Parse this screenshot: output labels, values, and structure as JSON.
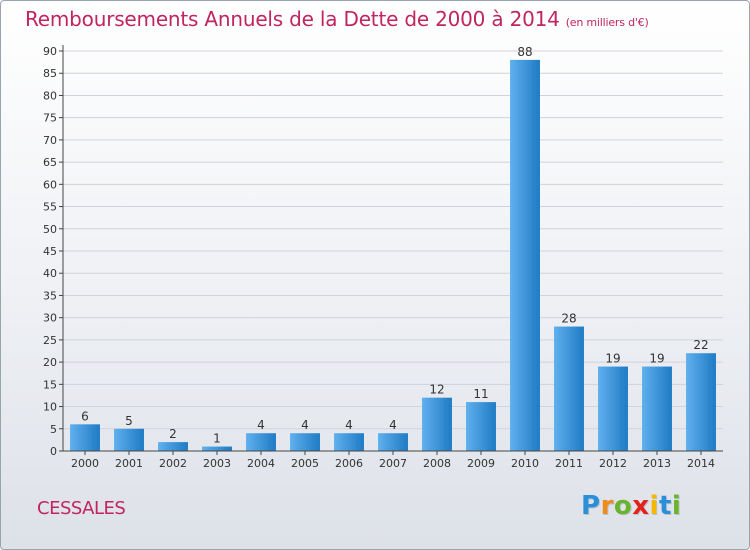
{
  "header": {
    "title": "Remboursements Annuels de la Dette de 2000 à 2014",
    "unit": "(en milliers d'€)"
  },
  "footer": {
    "commune": "CESSALES",
    "brand_letters": [
      "P",
      "r",
      "o",
      "x",
      "i",
      "t",
      "i"
    ],
    "brand_colors": [
      "#2a8fd8",
      "#f08a1c",
      "#6ab42d",
      "#e2231a",
      "#f5b800",
      "#2a8fd8",
      "#6ab42d"
    ]
  },
  "colors": {
    "title": "#c0255f",
    "bar_light": "#5fb0ee",
    "bar_dark": "#1f7bc4",
    "grid": "#cfd3da",
    "axis": "#444444"
  },
  "chart_data": {
    "type": "bar",
    "title": "Remboursements Annuels de la Dette de 2000 à 2014",
    "xlabel": "",
    "ylabel": "",
    "ylim": [
      0,
      90
    ],
    "ytick_step": 5,
    "grid": true,
    "categories": [
      "2000",
      "2001",
      "2002",
      "2003",
      "2004",
      "2005",
      "2006",
      "2007",
      "2008",
      "2009",
      "2010",
      "2011",
      "2012",
      "2013",
      "2014"
    ],
    "values": [
      6,
      5,
      2,
      1,
      4,
      4,
      4,
      4,
      12,
      11,
      88,
      28,
      19,
      19,
      22
    ]
  }
}
